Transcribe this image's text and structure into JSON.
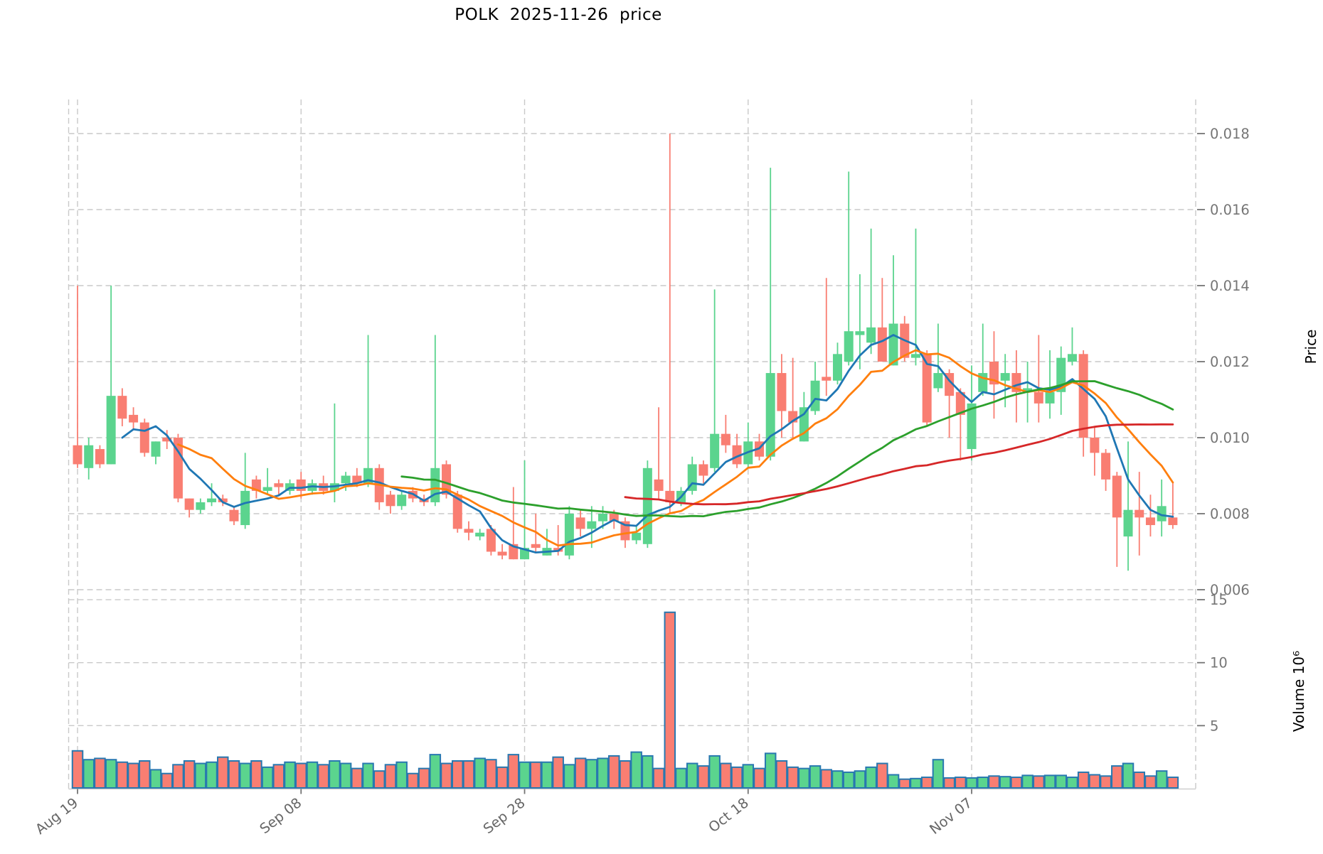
{
  "title": "POLK  2025-11-26  price",
  "axes": {
    "price_label": "Price",
    "volume_label": "Volume 10⁶",
    "price_tick_labels": [
      "0.006",
      "0.008",
      "0.010",
      "0.012",
      "0.014",
      "0.016",
      "0.018"
    ],
    "price_tick_values": [
      0.006,
      0.008,
      0.01,
      0.012,
      0.014,
      0.016,
      0.018
    ],
    "volume_tick_labels": [
      "5",
      "10",
      "15"
    ],
    "volume_tick_values": [
      5,
      10,
      15
    ],
    "x_tick_labels": [
      "Aug 19",
      "Sep 08",
      "Sep 28",
      "Oct 18",
      "Nov 07"
    ],
    "x_tick_indices": [
      0,
      20,
      40,
      60,
      80
    ]
  },
  "colors": {
    "up": "#5bd48e",
    "down": "#f97e72",
    "volume_edge": "#2878b0",
    "grid": "#c9c9c9",
    "tick_text": "#757575",
    "spine": "#cfcfcf",
    "ma_colors": [
      "#1f77b4",
      "#ff7f0e",
      "#2ca02c",
      "#d62728"
    ]
  },
  "chart_data": {
    "type": "candlestick+volume",
    "title": "POLK  2025-11-26  price",
    "ylabel": "Price",
    "ylabel2": "Volume 10⁶",
    "x_start_date": "2025-08-19",
    "x_end_date": "2025-11-25",
    "n_candles": 99,
    "price_ylim": [
      0.00589,
      0.0189
    ],
    "volume_ylim": [
      0,
      15.45
    ],
    "grid": "dashed",
    "legend_position": "none",
    "moving_average_windows": [
      5,
      10,
      30,
      50
    ],
    "candles": {
      "open": [
        0.0098,
        0.0092,
        0.0097,
        0.0093,
        0.0111,
        0.0106,
        0.0104,
        0.0095,
        0.01,
        0.01,
        0.0084,
        0.0081,
        0.0083,
        0.0084,
        0.0081,
        0.0077,
        0.0089,
        0.0086,
        0.0088,
        0.0086,
        0.0089,
        0.0086,
        0.0088,
        0.0086,
        0.0088,
        0.009,
        0.0088,
        0.0092,
        0.0085,
        0.0082,
        0.0086,
        0.0084,
        0.0083,
        0.0093,
        0.0085,
        0.0076,
        0.0074,
        0.0076,
        0.007,
        0.0072,
        0.0068,
        0.0072,
        0.0069,
        0.0071,
        0.0069,
        0.0079,
        0.0076,
        0.0078,
        0.008,
        0.0078,
        0.0073,
        0.0072,
        0.0089,
        0.0086,
        0.0083,
        0.0086,
        0.0093,
        0.0092,
        0.0101,
        0.0098,
        0.0093,
        0.0099,
        0.0095,
        0.0117,
        0.0107,
        0.0099,
        0.0107,
        0.0116,
        0.0115,
        0.012,
        0.0127,
        0.0125,
        0.0129,
        0.0119,
        0.013,
        0.0121,
        0.0122,
        0.0113,
        0.0117,
        0.0112,
        0.0097,
        0.0112,
        0.012,
        0.0115,
        0.0117,
        0.0112,
        0.0112,
        0.0109,
        0.0112,
        0.012,
        0.0122,
        0.01,
        0.0096,
        0.009,
        0.0074,
        0.0081,
        0.0079,
        0.0078,
        0.0079
      ],
      "high": [
        0.014,
        0.01,
        0.0098,
        0.014,
        0.0113,
        0.0108,
        0.0105,
        0.0099,
        0.0102,
        0.0101,
        0.0084,
        0.0084,
        0.0088,
        0.0085,
        0.0082,
        0.0096,
        0.009,
        0.0092,
        0.0089,
        0.0089,
        0.0091,
        0.0089,
        0.009,
        0.0109,
        0.0091,
        0.0092,
        0.0127,
        0.0093,
        0.0086,
        0.0086,
        0.0087,
        0.0085,
        0.0127,
        0.0094,
        0.0086,
        0.0078,
        0.0076,
        0.0077,
        0.0072,
        0.0087,
        0.0094,
        0.008,
        0.0076,
        0.0077,
        0.0082,
        0.0081,
        0.0082,
        0.0082,
        0.0081,
        0.0079,
        0.0077,
        0.0094,
        0.0108,
        0.018,
        0.0087,
        0.0095,
        0.0094,
        0.0139,
        0.0106,
        0.0101,
        0.0104,
        0.0101,
        0.0171,
        0.0122,
        0.0121,
        0.0112,
        0.012,
        0.0142,
        0.0125,
        0.017,
        0.0143,
        0.0155,
        0.0142,
        0.0148,
        0.0132,
        0.0155,
        0.0123,
        0.013,
        0.0118,
        0.0113,
        0.0119,
        0.013,
        0.0128,
        0.0122,
        0.0123,
        0.012,
        0.0127,
        0.0123,
        0.0124,
        0.0129,
        0.0123,
        0.0103,
        0.0097,
        0.0091,
        0.0099,
        0.0091,
        0.0085,
        0.0089,
        0.0088
      ],
      "low": [
        0.0092,
        0.0089,
        0.0092,
        0.0093,
        0.0103,
        0.0102,
        0.0095,
        0.0093,
        0.0097,
        0.0083,
        0.0079,
        0.008,
        0.0082,
        0.0082,
        0.0077,
        0.0076,
        0.0084,
        0.0085,
        0.0085,
        0.0085,
        0.0084,
        0.0085,
        0.0085,
        0.0083,
        0.0086,
        0.0087,
        0.0087,
        0.0081,
        0.008,
        0.0081,
        0.0083,
        0.0082,
        0.0082,
        0.0084,
        0.0075,
        0.0073,
        0.0073,
        0.0069,
        0.0068,
        0.0068,
        0.0068,
        0.007,
        0.0069,
        0.0069,
        0.0068,
        0.0074,
        0.0071,
        0.0076,
        0.0076,
        0.0071,
        0.0072,
        0.0071,
        0.0084,
        0.008,
        0.0082,
        0.0085,
        0.0088,
        0.0091,
        0.0096,
        0.0092,
        0.0092,
        0.0094,
        0.0094,
        0.01,
        0.01,
        0.0099,
        0.0106,
        0.0111,
        0.0114,
        0.0119,
        0.0118,
        0.0122,
        0.012,
        0.0119,
        0.012,
        0.0119,
        0.0103,
        0.0112,
        0.01,
        0.0094,
        0.0094,
        0.0111,
        0.0105,
        0.0108,
        0.0104,
        0.0104,
        0.0104,
        0.0105,
        0.0106,
        0.0119,
        0.0095,
        0.009,
        0.0086,
        0.0066,
        0.0065,
        0.0069,
        0.0074,
        0.0074,
        0.0076
      ],
      "close": [
        0.0093,
        0.0098,
        0.0093,
        0.0111,
        0.0105,
        0.0104,
        0.0096,
        0.0099,
        0.0099,
        0.0084,
        0.0081,
        0.0083,
        0.0084,
        0.0083,
        0.0078,
        0.0086,
        0.0086,
        0.0087,
        0.0087,
        0.0088,
        0.0086,
        0.0088,
        0.0086,
        0.0088,
        0.009,
        0.0088,
        0.0092,
        0.0083,
        0.0082,
        0.0085,
        0.0084,
        0.0083,
        0.0092,
        0.0085,
        0.0076,
        0.0075,
        0.0075,
        0.007,
        0.0069,
        0.0068,
        0.0071,
        0.0071,
        0.0071,
        0.007,
        0.008,
        0.0076,
        0.0078,
        0.008,
        0.0078,
        0.0073,
        0.0075,
        0.0092,
        0.0086,
        0.0083,
        0.0086,
        0.0093,
        0.009,
        0.0101,
        0.0098,
        0.0093,
        0.0099,
        0.0095,
        0.0117,
        0.0107,
        0.0104,
        0.0108,
        0.0115,
        0.0115,
        0.0122,
        0.0128,
        0.0128,
        0.0129,
        0.012,
        0.013,
        0.0121,
        0.0122,
        0.0104,
        0.0117,
        0.0111,
        0.0106,
        0.0109,
        0.0117,
        0.0114,
        0.0117,
        0.0112,
        0.0113,
        0.0109,
        0.0112,
        0.0121,
        0.0122,
        0.01,
        0.0096,
        0.0089,
        0.0079,
        0.0081,
        0.0079,
        0.0077,
        0.0082,
        0.0077
      ],
      "volume": [
        3.0,
        2.3,
        2.4,
        2.3,
        2.1,
        2.0,
        2.2,
        1.5,
        1.2,
        1.9,
        2.2,
        2.0,
        2.1,
        2.5,
        2.2,
        2.0,
        2.2,
        1.7,
        1.9,
        2.1,
        2.0,
        2.1,
        1.9,
        2.2,
        2.0,
        1.6,
        2.0,
        1.4,
        1.9,
        2.1,
        1.2,
        1.6,
        2.7,
        2.0,
        2.2,
        2.2,
        2.4,
        2.3,
        1.7,
        2.7,
        2.1,
        2.1,
        2.1,
        2.5,
        1.9,
        2.4,
        2.3,
        2.4,
        2.6,
        2.2,
        2.9,
        2.6,
        1.6,
        14.0,
        1.6,
        2.0,
        1.8,
        2.6,
        2.0,
        1.7,
        1.9,
        1.6,
        2.8,
        2.2,
        1.7,
        1.6,
        1.8,
        1.5,
        1.4,
        1.3,
        1.4,
        1.7,
        2.0,
        1.1,
        0.75,
        0.8,
        0.9,
        2.3,
        0.85,
        0.9,
        0.85,
        0.9,
        1.0,
        0.95,
        0.9,
        1.05,
        1.0,
        1.05,
        1.05,
        0.9,
        1.3,
        1.1,
        1.0,
        1.8,
        2.0,
        1.3,
        1.0,
        1.4,
        0.9
      ]
    }
  }
}
